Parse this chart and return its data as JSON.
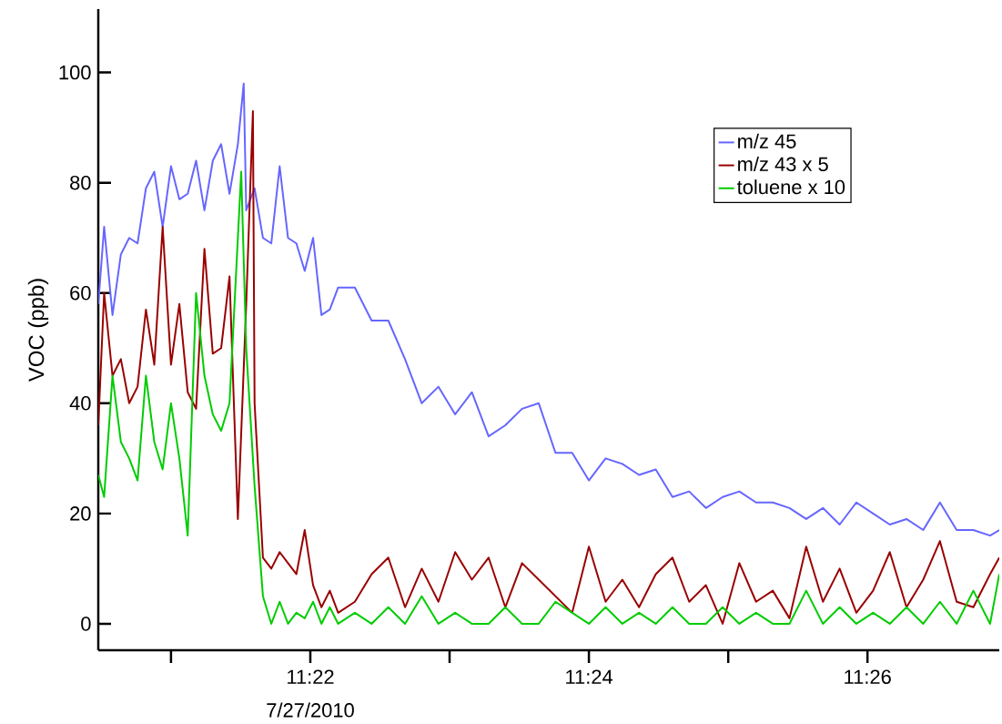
{
  "chart_data": {
    "type": "line",
    "ylabel": "VOC (ppb)",
    "annotations": [
      "7/27/2010"
    ],
    "xlim": [
      11.3413,
      11.4491
    ],
    "ylim": [
      -4.8,
      111.5
    ],
    "xticks": [
      {
        "value": 11.35,
        "label": null
      },
      {
        "value": 11.36667,
        "label": "11:22"
      },
      {
        "value": 11.38333,
        "label": null
      },
      {
        "value": 11.4,
        "label": "11:24"
      },
      {
        "value": 11.41667,
        "label": null
      },
      {
        "value": 11.43333,
        "label": "11:26"
      }
    ],
    "yticks": [
      0,
      20,
      40,
      60,
      80,
      100
    ],
    "legend": "top right",
    "marker": "none",
    "line_style": "solid",
    "grid": false,
    "series": [
      {
        "name": "m/z 45",
        "color": "#6666ff",
        "x": [
          11.3413,
          11.342,
          11.343,
          11.344,
          11.345,
          11.346,
          11.347,
          11.348,
          11.349,
          11.35,
          11.351,
          11.352,
          11.353,
          11.354,
          11.355,
          11.356,
          11.357,
          11.358,
          11.3587,
          11.359,
          11.36,
          11.361,
          11.362,
          11.363,
          11.364,
          11.365,
          11.366,
          11.367,
          11.368,
          11.369,
          11.37,
          11.372,
          11.374,
          11.376,
          11.378,
          11.38,
          11.382,
          11.384,
          11.386,
          11.388,
          11.39,
          11.392,
          11.394,
          11.396,
          11.398,
          11.4,
          11.402,
          11.404,
          11.406,
          11.408,
          11.41,
          11.412,
          11.414,
          11.416,
          11.418,
          11.42,
          11.422,
          11.424,
          11.426,
          11.428,
          11.43,
          11.432,
          11.434,
          11.436,
          11.438,
          11.44,
          11.442,
          11.444,
          11.446,
          11.448,
          11.4491
        ],
        "values": [
          58,
          72,
          56,
          67,
          70,
          69,
          79,
          82,
          72,
          83,
          77,
          78,
          84,
          75,
          84,
          87,
          78,
          87,
          98,
          75,
          79,
          70,
          69,
          83,
          70,
          69,
          64,
          70,
          56,
          57,
          61,
          61,
          55,
          55,
          48,
          40,
          43,
          38,
          42,
          34,
          36,
          39,
          40,
          31,
          31,
          26,
          30,
          29,
          27,
          28,
          23,
          24,
          21,
          23,
          24,
          22,
          22,
          21,
          19,
          21,
          18,
          22,
          20,
          18,
          19,
          17,
          22,
          17,
          17,
          16,
          17
        ]
      },
      {
        "name": "m/z 43 x 5",
        "color": "#990000",
        "x": [
          11.3413,
          11.342,
          11.343,
          11.344,
          11.345,
          11.346,
          11.347,
          11.348,
          11.349,
          11.35,
          11.351,
          11.352,
          11.353,
          11.354,
          11.355,
          11.356,
          11.357,
          11.358,
          11.359,
          11.3598,
          11.36,
          11.361,
          11.362,
          11.363,
          11.364,
          11.365,
          11.366,
          11.367,
          11.368,
          11.369,
          11.37,
          11.372,
          11.374,
          11.376,
          11.378,
          11.38,
          11.382,
          11.384,
          11.386,
          11.388,
          11.39,
          11.392,
          11.394,
          11.396,
          11.398,
          11.4,
          11.402,
          11.404,
          11.406,
          11.408,
          11.41,
          11.412,
          11.414,
          11.416,
          11.418,
          11.42,
          11.422,
          11.424,
          11.426,
          11.428,
          11.43,
          11.432,
          11.434,
          11.436,
          11.438,
          11.44,
          11.442,
          11.444,
          11.446,
          11.448,
          11.4491
        ],
        "values": [
          36,
          60,
          45,
          48,
          40,
          43,
          57,
          47,
          72,
          47,
          58,
          42,
          39,
          68,
          49,
          50,
          63,
          19,
          58,
          93,
          40,
          12,
          10,
          13,
          11,
          9,
          17,
          7,
          3,
          6,
          2,
          4,
          9,
          12,
          3,
          10,
          4,
          13,
          8,
          12,
          3,
          11,
          8,
          5,
          2,
          14,
          4,
          8,
          3,
          9,
          12,
          4,
          7,
          0,
          11,
          4,
          6,
          1,
          14,
          4,
          10,
          2,
          6,
          13,
          3,
          8,
          15,
          4,
          3,
          9,
          12
        ]
      },
      {
        "name": "toluene x 10",
        "color": "#00cc00",
        "x": [
          11.3413,
          11.342,
          11.343,
          11.344,
          11.345,
          11.346,
          11.347,
          11.348,
          11.349,
          11.35,
          11.351,
          11.352,
          11.353,
          11.354,
          11.355,
          11.356,
          11.357,
          11.3584,
          11.359,
          11.36,
          11.361,
          11.362,
          11.363,
          11.364,
          11.365,
          11.366,
          11.367,
          11.368,
          11.369,
          11.37,
          11.372,
          11.374,
          11.376,
          11.378,
          11.38,
          11.382,
          11.384,
          11.386,
          11.388,
          11.39,
          11.392,
          11.394,
          11.396,
          11.398,
          11.4,
          11.402,
          11.404,
          11.406,
          11.408,
          11.41,
          11.412,
          11.414,
          11.416,
          11.418,
          11.42,
          11.422,
          11.424,
          11.426,
          11.428,
          11.43,
          11.432,
          11.434,
          11.436,
          11.438,
          11.44,
          11.442,
          11.444,
          11.446,
          11.448,
          11.4491
        ],
        "values": [
          27,
          23,
          45,
          33,
          30,
          26,
          45,
          33,
          28,
          40,
          30,
          16,
          60,
          45,
          38,
          35,
          40,
          82,
          50,
          25,
          5,
          0,
          4,
          0,
          2,
          1,
          4,
          0,
          3,
          0,
          2,
          0,
          3,
          0,
          5,
          0,
          2,
          0,
          0,
          3,
          0,
          0,
          4,
          2,
          0,
          3,
          0,
          2,
          0,
          3,
          0,
          0,
          3,
          0,
          2,
          0,
          0,
          6,
          0,
          3,
          0,
          2,
          0,
          3,
          0,
          4,
          0,
          6,
          0,
          9
        ]
      }
    ]
  }
}
